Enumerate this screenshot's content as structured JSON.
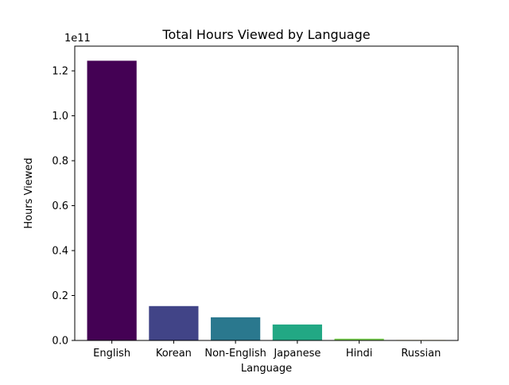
{
  "chart_data": {
    "type": "bar",
    "title": "Total Hours Viewed by Language",
    "xlabel": "Language",
    "ylabel": "Hours Viewed",
    "y_offset_label": "1e11",
    "categories": [
      "English",
      "Korean",
      "Non-English",
      "Japanese",
      "Hindi",
      "Russian"
    ],
    "values": [
      124500000000,
      15300000000,
      10300000000,
      7100000000,
      800000000,
      200000000
    ],
    "colors": [
      "#440154",
      "#414487",
      "#2a788e",
      "#22a884",
      "#7ad151",
      "#fde725"
    ],
    "ylim": [
      0,
      131000000000
    ],
    "yticks": [
      0,
      20000000000,
      40000000000,
      60000000000,
      80000000000,
      100000000000,
      120000000000
    ],
    "ytick_labels": [
      "0.0",
      "0.2",
      "0.4",
      "0.6",
      "0.8",
      "1.0",
      "1.2"
    ],
    "grid": false,
    "legend": "none"
  }
}
